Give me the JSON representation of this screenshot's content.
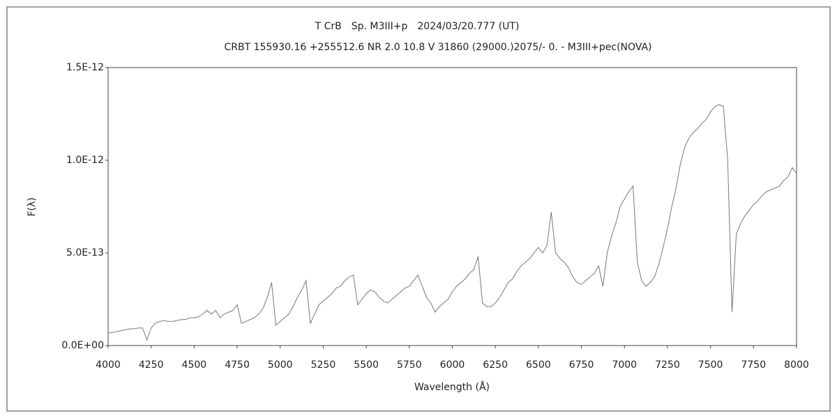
{
  "chart_data": {
    "type": "line",
    "title": "T CrB　Sp. M3III+p　2024/03/20.777 (UT)",
    "subtitle": "CRBT 155930.16 +255512.6 NR 2.0 10.8 V 31860 (29000.)2075/-  0. - M3III+pec(NOVA)",
    "x_label": "Wavelength (Å)",
    "y_label": "F(λ)",
    "color": "#777777",
    "grid": false,
    "xlim": [
      4000,
      8000
    ],
    "xticks": [
      4000,
      4250,
      4500,
      4750,
      5000,
      5250,
      5500,
      5750,
      6000,
      6250,
      6500,
      6750,
      7000,
      7250,
      7500,
      7750,
      8000
    ],
    "ylim": [
      0,
      1.5e-12
    ],
    "yticks": [
      {
        "value": 0,
        "label": "0.0E+00"
      },
      {
        "value": 5e-13,
        "label": "5.0E-13"
      },
      {
        "value": 1e-12,
        "label": "1.0E-12"
      },
      {
        "value": 1.5e-12,
        "label": "1.5E-12"
      }
    ],
    "x": [
      4000,
      4025,
      4050,
      4075,
      4100,
      4125,
      4150,
      4175,
      4200,
      4225,
      4250,
      4275,
      4300,
      4325,
      4350,
      4375,
      4400,
      4425,
      4450,
      4475,
      4500,
      4525,
      4550,
      4575,
      4600,
      4625,
      4650,
      4675,
      4700,
      4725,
      4750,
      4775,
      4800,
      4825,
      4850,
      4875,
      4900,
      4925,
      4950,
      4975,
      5000,
      5025,
      5050,
      5075,
      5100,
      5125,
      5150,
      5175,
      5200,
      5225,
      5250,
      5275,
      5300,
      5325,
      5350,
      5375,
      5400,
      5425,
      5450,
      5475,
      5500,
      5525,
      5550,
      5575,
      5600,
      5625,
      5650,
      5675,
      5700,
      5725,
      5750,
      5775,
      5800,
      5825,
      5850,
      5875,
      5900,
      5925,
      5950,
      5975,
      6000,
      6025,
      6050,
      6075,
      6100,
      6125,
      6150,
      6175,
      6200,
      6225,
      6250,
      6275,
      6300,
      6325,
      6350,
      6375,
      6400,
      6425,
      6450,
      6475,
      6500,
      6525,
      6550,
      6575,
      6600,
      6625,
      6650,
      6675,
      6700,
      6725,
      6750,
      6775,
      6800,
      6825,
      6850,
      6875,
      6900,
      6925,
      6950,
      6975,
      7000,
      7025,
      7050,
      7075,
      7100,
      7125,
      7150,
      7175,
      7200,
      7225,
      7250,
      7275,
      7300,
      7325,
      7350,
      7375,
      7400,
      7425,
      7450,
      7475,
      7500,
      7525,
      7550,
      7575,
      7600,
      7625,
      7650,
      7675,
      7700,
      7725,
      7750,
      7775,
      7800,
      7825,
      7850,
      7875,
      7900,
      7925,
      7950,
      7975,
      8000
    ],
    "values": [
      6.8e-14,
      7e-14,
      7.5e-14,
      8e-14,
      8.5e-14,
      9e-14,
      9e-14,
      9.5e-14,
      9.5e-14,
      3e-14,
      9.5e-14,
      1.2e-13,
      1.3e-13,
      1.35e-13,
      1.3e-13,
      1.3e-13,
      1.35e-13,
      1.4e-13,
      1.4e-13,
      1.5e-13,
      1.5e-13,
      1.55e-13,
      1.7e-13,
      1.9e-13,
      1.7e-13,
      1.9e-13,
      1.5e-13,
      1.7e-13,
      1.8e-13,
      1.9e-13,
      2.2e-13,
      1.2e-13,
      1.3e-13,
      1.4e-13,
      1.5e-13,
      1.7e-13,
      2e-13,
      2.6e-13,
      3.4e-13,
      1.1e-13,
      1.3e-13,
      1.5e-13,
      1.7e-13,
      2.1e-13,
      2.6e-13,
      3e-13,
      3.5e-13,
      1.2e-13,
      1.7e-13,
      2.2e-13,
      2.4e-13,
      2.6e-13,
      2.8e-13,
      3.1e-13,
      3.2e-13,
      3.5e-13,
      3.7e-13,
      3.8e-13,
      2.2e-13,
      2.5e-13,
      2.8e-13,
      3e-13,
      2.9e-13,
      2.6e-13,
      2.4e-13,
      2.3e-13,
      2.5e-13,
      2.7e-13,
      2.9e-13,
      3.1e-13,
      3.2e-13,
      3.5e-13,
      3.8e-13,
      3.2e-13,
      2.6e-13,
      2.3e-13,
      1.8e-13,
      2.1e-13,
      2.3e-13,
      2.5e-13,
      2.9e-13,
      3.2e-13,
      3.4e-13,
      3.6e-13,
      3.9e-13,
      4.1e-13,
      4.8e-13,
      2.3e-13,
      2.1e-13,
      2.1e-13,
      2.3e-13,
      2.6e-13,
      3e-13,
      3.4e-13,
      3.6e-13,
      4e-13,
      4.3e-13,
      4.5e-13,
      4.7e-13,
      5e-13,
      5.3e-13,
      5e-13,
      5.4e-13,
      7.2e-13,
      5e-13,
      4.7e-13,
      4.5e-13,
      4.2e-13,
      3.7e-13,
      3.4e-13,
      3.3e-13,
      3.5e-13,
      3.7e-13,
      3.9e-13,
      4.3e-13,
      3.2e-13,
      5e-13,
      5.9e-13,
      6.6e-13,
      7.5e-13,
      7.9e-13,
      8.3e-13,
      8.6e-13,
      4.5e-13,
      3.5e-13,
      3.2e-13,
      3.4e-13,
      3.7e-13,
      4.4e-13,
      5.3e-13,
      6.3e-13,
      7.5e-13,
      8.5e-13,
      9.8e-13,
      1.07e-12,
      1.12e-12,
      1.15e-12,
      1.17e-12,
      1.2e-12,
      1.22e-12,
      1.26e-12,
      1.29e-12,
      1.3e-12,
      1.29e-12,
      1e-12,
      1.8e-13,
      6e-13,
      6.6e-13,
      7e-13,
      7.3e-13,
      7.6e-13,
      7.8e-13,
      8.1e-13,
      8.3e-13,
      8.4e-13,
      8.5e-13,
      8.6e-13,
      8.9e-13,
      9.1e-13,
      9.6e-13,
      9.3e-13
    ]
  }
}
